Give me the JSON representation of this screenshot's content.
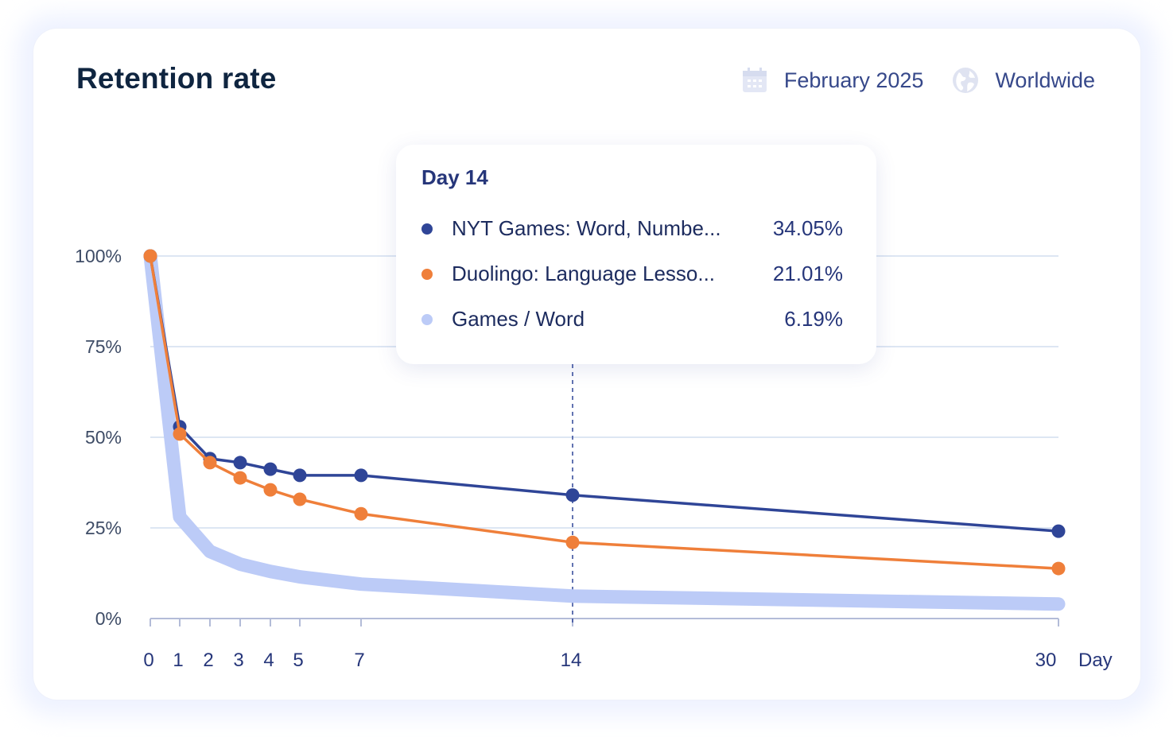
{
  "header": {
    "title": "Retention rate",
    "date_filter": {
      "label": "February 2025",
      "icon": "calendar-icon"
    },
    "region_filter": {
      "label": "Worldwide",
      "icon": "globe-icon"
    }
  },
  "tooltip": {
    "title": "Day 14",
    "rows": [
      {
        "label": "NYT Games: Word, Numbe...",
        "value": "34.05%",
        "color": "#2f4597"
      },
      {
        "label": "Duolingo: Language Lesso...",
        "value": "21.01%",
        "color": "#ef7f3a"
      },
      {
        "label": "Games / Word",
        "value": "6.19%",
        "color": "#bccbf7"
      }
    ]
  },
  "axes": {
    "y_ticks": [
      "100%",
      "75%",
      "50%",
      "25%",
      "0%"
    ],
    "x_ticks": [
      "0",
      "1",
      "2",
      "3",
      "4",
      "5",
      "7",
      "14",
      "30"
    ],
    "x_unit": "Day"
  },
  "chart_data": {
    "type": "line",
    "title": "Retention rate",
    "xlabel": "Day",
    "ylabel": "",
    "x": [
      0,
      1,
      2,
      3,
      4,
      5,
      7,
      14,
      30
    ],
    "ylim": [
      0,
      100
    ],
    "y_ticks": [
      0,
      25,
      50,
      75,
      100
    ],
    "grid": true,
    "highlighted_x": 14,
    "series": [
      {
        "name": "NYT Games: Word, Numbe...",
        "color": "#2f4597",
        "values": [
          100,
          52.9,
          44.1,
          43.0,
          41.2,
          39.5,
          39.5,
          34.05,
          24.1
        ]
      },
      {
        "name": "Duolingo: Language Lesso...",
        "color": "#ef7f3a",
        "values": [
          100,
          50.9,
          43.0,
          38.8,
          35.5,
          32.9,
          28.9,
          21.01,
          13.8
        ]
      },
      {
        "name": "Games / Word",
        "color": "#bccbf7",
        "values": [
          100,
          28.0,
          18.5,
          15.0,
          13.0,
          11.5,
          9.5,
          6.19,
          4.0
        ]
      }
    ]
  }
}
